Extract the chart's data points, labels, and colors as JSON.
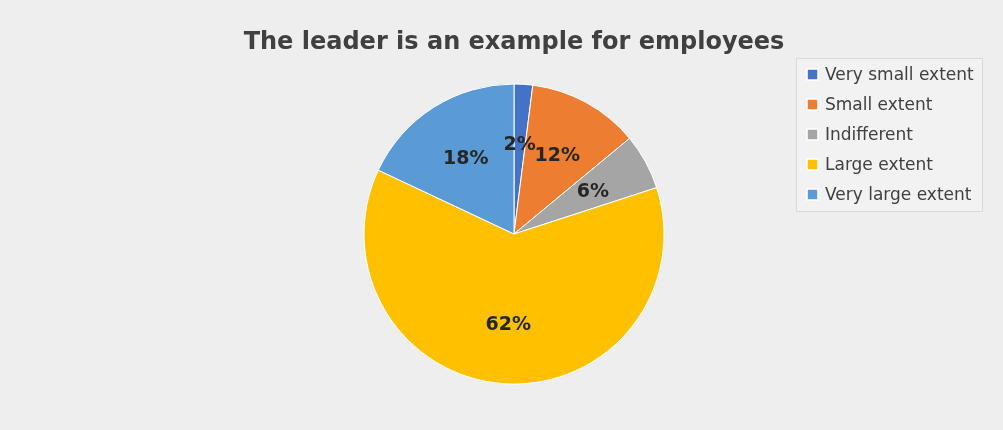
{
  "chart_data": {
    "type": "pie",
    "title": "The leader is an example for employees",
    "categories": [
      "Very small extent",
      "Small extent",
      "Indifferent",
      "Large extent",
      "Very large extent"
    ],
    "values": [
      2,
      12,
      6,
      62,
      18
    ],
    "colors": [
      "#4472c4",
      "#ed7d31",
      "#a5a5a5",
      "#ffc000",
      "#5b9bd5"
    ],
    "value_labels": [
      "2%",
      "12%",
      "6%",
      "62%",
      "18%"
    ],
    "legend": "right"
  }
}
